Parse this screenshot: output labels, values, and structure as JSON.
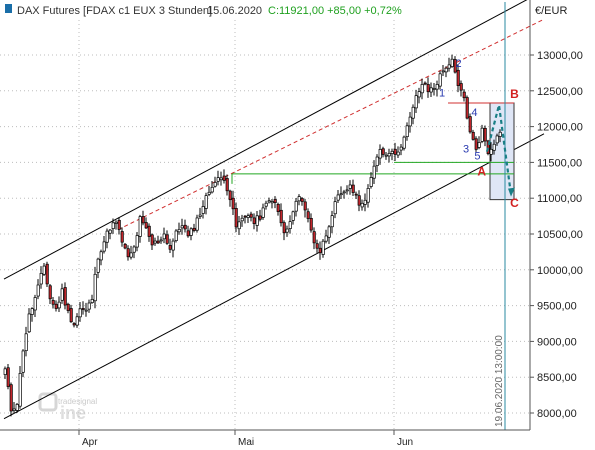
{
  "header": {
    "instrument": "DAX Futures [FDAX c1 EUX  3 Stunden]",
    "date": "15.06.2020",
    "change": "C:11921,00 +85,00 +0,72%"
  },
  "currency_label": "€/EUR",
  "watermark": {
    "brand": "tradesignal",
    "suffix": "ine"
  },
  "colors": {
    "up_candle": "#ffffff",
    "down_candle": "#c0262c",
    "wick": "#000000",
    "channel": "#000000",
    "dashed_channel": "#d03030",
    "support": "#21a621",
    "box_border": "#d03030",
    "forecast_box": "#dfe6f6",
    "forecast_arrow": "#1a7f86",
    "time_line": "#2a8aa0",
    "wave_labels": "#2a3bb0",
    "abc_labels": "#d32020"
  },
  "chart_data": {
    "type": "candlestick",
    "title": "DAX Futures [FDAX c1 EUX  3 Stunden]",
    "y_axis": {
      "unit": "€/EUR",
      "range": [
        7800,
        13650
      ],
      "ticks": [
        "8000,00",
        "8500,00",
        "9000,00",
        "9500,00",
        "10000,00",
        "10500,00",
        "11000,00",
        "11500,00",
        "12000,00",
        "12500,00",
        "13000,00"
      ],
      "tick_values": [
        8000,
        8500,
        9000,
        9500,
        10000,
        10500,
        11000,
        11500,
        12000,
        12500,
        13000
      ]
    },
    "x_axis": {
      "ticks": [
        "Apr",
        "Mai",
        "Jun"
      ],
      "tick_bar_index": [
        25,
        77,
        130
      ]
    },
    "last_close": 11921,
    "change": 85,
    "change_pct": 0.72,
    "anchors": [
      [
        0,
        8600
      ],
      [
        2,
        8050
      ],
      [
        4,
        8150
      ],
      [
        6,
        8900
      ],
      [
        8,
        9350
      ],
      [
        10,
        9600
      ],
      [
        12,
        9900
      ],
      [
        13,
        10050
      ],
      [
        15,
        9600
      ],
      [
        17,
        9450
      ],
      [
        19,
        9700
      ],
      [
        21,
        9400
      ],
      [
        23,
        9250
      ],
      [
        25,
        9450
      ],
      [
        27,
        9420
      ],
      [
        29,
        9600
      ],
      [
        31,
        10200
      ],
      [
        33,
        10400
      ],
      [
        35,
        10600
      ],
      [
        37,
        10650
      ],
      [
        39,
        10400
      ],
      [
        41,
        10150
      ],
      [
        43,
        10300
      ],
      [
        45,
        10700
      ],
      [
        47,
        10550
      ],
      [
        49,
        10350
      ],
      [
        51,
        10400
      ],
      [
        53,
        10500
      ],
      [
        55,
        10300
      ],
      [
        57,
        10500
      ],
      [
        59,
        10650
      ],
      [
        61,
        10450
      ],
      [
        63,
        10600
      ],
      [
        65,
        10800
      ],
      [
        67,
        11000
      ],
      [
        69,
        11200
      ],
      [
        71,
        11250
      ],
      [
        73,
        11300
      ],
      [
        75,
        11000
      ],
      [
        77,
        10600
      ],
      [
        79,
        10700
      ],
      [
        81,
        10800
      ],
      [
        83,
        10650
      ],
      [
        85,
        10750
      ],
      [
        87,
        10900
      ],
      [
        89,
        11000
      ],
      [
        91,
        10800
      ],
      [
        93,
        10500
      ],
      [
        95,
        10650
      ],
      [
        97,
        10950
      ],
      [
        99,
        11000
      ],
      [
        101,
        10700
      ],
      [
        103,
        10400
      ],
      [
        105,
        10250
      ],
      [
        107,
        10500
      ],
      [
        109,
        10800
      ],
      [
        111,
        11000
      ],
      [
        113,
        11050
      ],
      [
        115,
        11200
      ],
      [
        117,
        11000
      ],
      [
        119,
        10900
      ],
      [
        121,
        11150
      ],
      [
        123,
        11400
      ],
      [
        125,
        11700
      ],
      [
        127,
        11600
      ],
      [
        129,
        11700
      ],
      [
        131,
        11600
      ],
      [
        133,
        11900
      ],
      [
        135,
        12100
      ],
      [
        137,
        12400
      ],
      [
        139,
        12600
      ],
      [
        141,
        12500
      ],
      [
        143,
        12550
      ],
      [
        145,
        12700
      ],
      [
        147,
        12850
      ],
      [
        149,
        12900
      ],
      [
        151,
        12550
      ],
      [
        153,
        12400
      ],
      [
        155,
        11900
      ],
      [
        157,
        11700
      ],
      [
        159,
        11950
      ],
      [
        161,
        11650
      ],
      [
        163,
        11800
      ],
      [
        165,
        11900
      ]
    ],
    "first_segment_end_index": 33,
    "channel_lines": {
      "upper": {
        "from": [
          0,
          9870
        ],
        "to": [
          180,
          13900
        ]
      },
      "lower": {
        "from": [
          0,
          7920
        ],
        "to": [
          180,
          11900
        ]
      },
      "upper_dashed": {
        "from": [
          38,
          10560
        ],
        "to": [
          180,
          13500
        ]
      }
    },
    "levels": [
      {
        "name": "box_top",
        "value": 12330,
        "from": 148,
        "to": 170
      },
      {
        "name": "support_upper",
        "value": 11500,
        "from": 130,
        "to": 170
      },
      {
        "name": "support_lower",
        "value": 11340,
        "from": 76,
        "to": 170
      }
    ],
    "forecast_box": {
      "x_from": 162,
      "x_to": 170,
      "y_from": 10980,
      "y_to": 12330
    },
    "forecast_path": [
      [
        161,
        11650
      ],
      [
        165,
        12300
      ],
      [
        169,
        11050
      ]
    ],
    "vertical_line": {
      "x": 167,
      "label": "19.06.2020 13:00:00"
    },
    "wave_labels": [
      {
        "text": "1",
        "x": 145,
        "y": 12420
      },
      {
        "text": "2",
        "x": 150.5,
        "y": 12830
      },
      {
        "text": "3",
        "x": 153,
        "y": 11640
      },
      {
        "text": "4",
        "x": 155.8,
        "y": 12150
      },
      {
        "text": "5",
        "x": 156.8,
        "y": 11540
      }
    ],
    "abc_labels": [
      {
        "text": "A",
        "x": 157.8,
        "y": 11320
      },
      {
        "text": "B",
        "x": 168.7,
        "y": 12400
      },
      {
        "text": "C",
        "x": 168.7,
        "y": 10880
      }
    ]
  }
}
